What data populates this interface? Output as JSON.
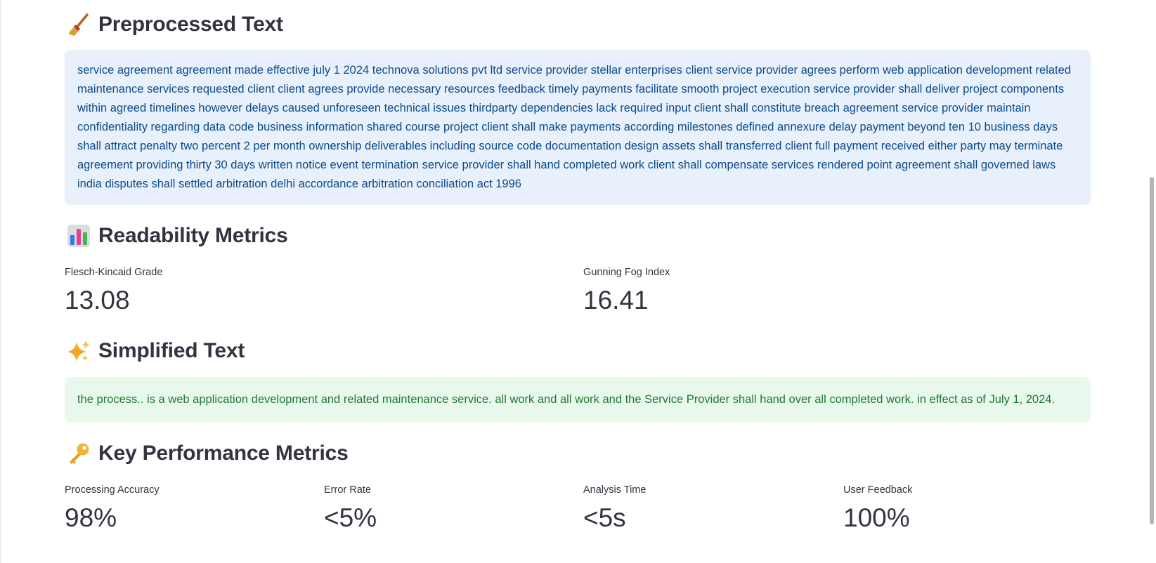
{
  "preprocessed": {
    "title": "Preprocessed Text",
    "icon": "broom-icon",
    "text": "service agreement agreement made effective july 1 2024 technova solutions pvt ltd service provider stellar enterprises client service provider agrees perform web application development related maintenance services requested client client agrees provide necessary resources feedback timely payments facilitate smooth project execution service provider shall deliver project components within agreed timelines however delays caused unforeseen technical issues thirdparty dependencies lack required input client shall constitute breach agreement service provider maintain confidentiality regarding data code business information shared course project client shall make payments according milestones defined annexure delay payment beyond ten 10 business days shall attract penalty two percent 2 per month ownership deliverables including source code documentation design assets shall transferred client full payment received either party may terminate agreement providing thirty 30 days written notice event termination service provider shall hand completed work client shall compensate services rendered point agreement shall governed laws india disputes shall settled arbitration delhi accordance arbitration conciliation act 1996",
    "bg_color": "#e8f1fb",
    "text_color": "#0c4a8a"
  },
  "readability": {
    "title": "Readability Metrics",
    "icon": "bar-chart-icon",
    "metrics": [
      {
        "label": "Flesch-Kincaid Grade",
        "value": "13.08"
      },
      {
        "label": "Gunning Fog Index",
        "value": "16.41"
      }
    ]
  },
  "simplified": {
    "title": "Simplified Text",
    "icon": "sparkles-icon",
    "text": "the process.. is a web application development and related maintenance service. all work and all work and the Service Provider shall hand over all completed work. in effect as of July 1, 2024.",
    "bg_color": "#e9f8ec",
    "text_color": "#1d7a32"
  },
  "kpi": {
    "title": "Key Performance Metrics",
    "icon": "key-icon",
    "metrics": [
      {
        "label": "Processing Accuracy",
        "value": "98%"
      },
      {
        "label": "Error Rate",
        "value": "<5%"
      },
      {
        "label": "Analysis Time",
        "value": "<5s"
      },
      {
        "label": "User Feedback",
        "value": "100%"
      }
    ]
  }
}
